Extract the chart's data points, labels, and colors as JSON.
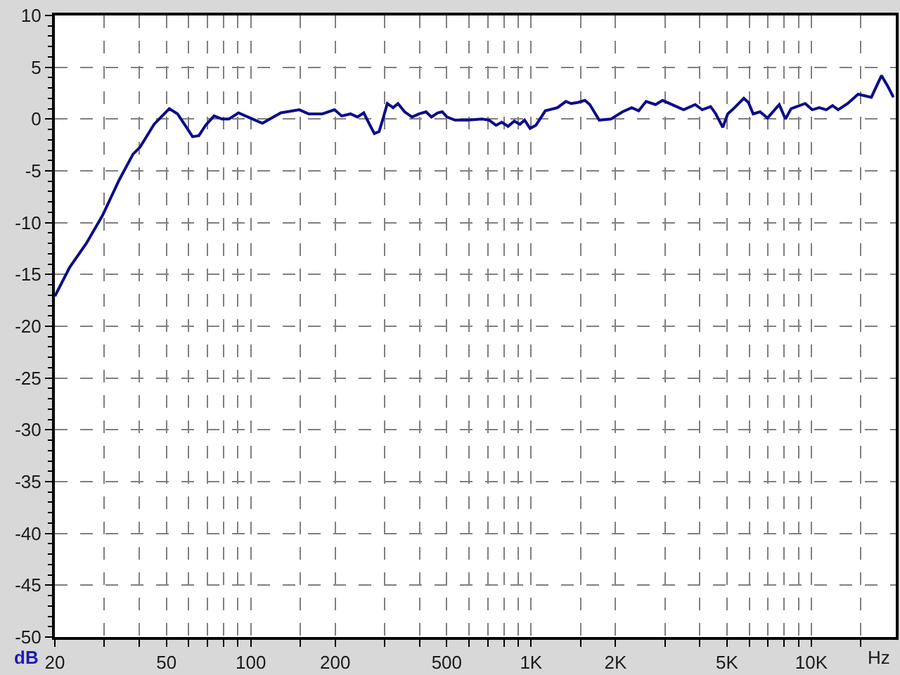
{
  "chart_data": {
    "type": "line",
    "xlabel": "Hz",
    "ylabel": "dB",
    "log": "x",
    "grid": true,
    "color": "#0c0c8a",
    "x": [
      20,
      22.6,
      25.9,
      29.6,
      33.9,
      38,
      40.3,
      45.2,
      51.2,
      54.8,
      62,
      65.3,
      69,
      74,
      79,
      83.5,
      90.4,
      97.6,
      110,
      128,
      149,
      161,
      180,
      199,
      211,
      227,
      240,
      253,
      265,
      276,
      287,
      296,
      307,
      322,
      335,
      354,
      376,
      399,
      422,
      441,
      464,
      482,
      501,
      535,
      596,
      668,
      708,
      750,
      786,
      828,
      871,
      912,
      948,
      992,
      1040,
      1124,
      1242,
      1330,
      1390,
      1468,
      1556,
      1620,
      1750,
      1926,
      2120,
      2285,
      2420,
      2572,
      2780,
      2945,
      3178,
      3500,
      3850,
      4080,
      4370,
      4560,
      4830,
      5030,
      5320,
      5740,
      5960,
      6200,
      6560,
      6970,
      7680,
      8080,
      8460,
      9500,
      10070,
      10670,
      11300,
      11900,
      12460,
      13470,
      14680,
      16360,
      17790,
      18700,
      19620
    ],
    "values": [
      -17.1,
      -14.3,
      -12.0,
      -9.3,
      -5.9,
      -3.4,
      -2.7,
      -0.5,
      1.0,
      0.5,
      -1.7,
      -1.6,
      -0.6,
      0.3,
      0,
      0,
      0.6,
      0.2,
      -0.4,
      0.6,
      0.9,
      0.5,
      0.5,
      0.9,
      0.3,
      0.5,
      0.2,
      0.6,
      -0.5,
      -1.4,
      -1.2,
      0,
      1.5,
      1.1,
      1.5,
      0.7,
      0.2,
      0.5,
      0.7,
      0.2,
      0.6,
      0.7,
      0.2,
      -0.1,
      -0.1,
      0,
      -0.1,
      -0.6,
      -0.3,
      -0.7,
      -0.2,
      -0.5,
      -0.1,
      -0.9,
      -0.6,
      0.8,
      1.1,
      1.7,
      1.5,
      1.6,
      1.8,
      1.4,
      -0.1,
      0,
      0.7,
      1.1,
      0.8,
      1.7,
      1.4,
      1.8,
      1.4,
      0.9,
      1.4,
      0.9,
      1.2,
      0.5,
      -0.8,
      0.5,
      1.1,
      2.0,
      1.6,
      0.5,
      0.7,
      0.1,
      1.4,
      0,
      1.0,
      1.5,
      0.9,
      1.1,
      0.9,
      1.3,
      0.9,
      1.5,
      2.4,
      2.1,
      4.2,
      3.2,
      2.1
    ],
    "xlim": [
      20,
      20000
    ],
    "xticks": [
      20,
      {
        "value": 30,
        "label": null
      },
      {
        "value": 40,
        "label": null
      },
      50,
      {
        "value": 60,
        "label": null
      },
      {
        "value": 70,
        "label": null
      },
      {
        "value": 80,
        "label": null
      },
      {
        "value": 90,
        "label": null
      },
      100,
      {
        "value": 150,
        "label": null
      },
      200,
      {
        "value": 300,
        "label": null
      },
      {
        "value": 400,
        "label": null
      },
      500,
      {
        "value": 600,
        "label": null
      },
      {
        "value": 700,
        "label": null
      },
      {
        "value": 800,
        "label": null
      },
      {
        "value": 900,
        "label": null
      },
      {
        "value": 1000,
        "label": "1K"
      },
      {
        "value": 1500,
        "label": null
      },
      {
        "value": 2000,
        "label": "2K"
      },
      {
        "value": 3000,
        "label": null
      },
      {
        "value": 4000,
        "label": null
      },
      {
        "value": 5000,
        "label": "5K"
      },
      {
        "value": 6000,
        "label": null
      },
      {
        "value": 7000,
        "label": null
      },
      {
        "value": 8000,
        "label": null
      },
      {
        "value": 9000,
        "label": null
      },
      {
        "value": 10000,
        "label": "10K"
      },
      {
        "value": 15000,
        "label": null
      }
    ],
    "ylim": [
      -50,
      10
    ],
    "yticks": [
      10,
      5,
      0,
      -5,
      -10,
      -15,
      -20,
      -25,
      -30,
      -35,
      -40,
      -45,
      -50
    ]
  }
}
